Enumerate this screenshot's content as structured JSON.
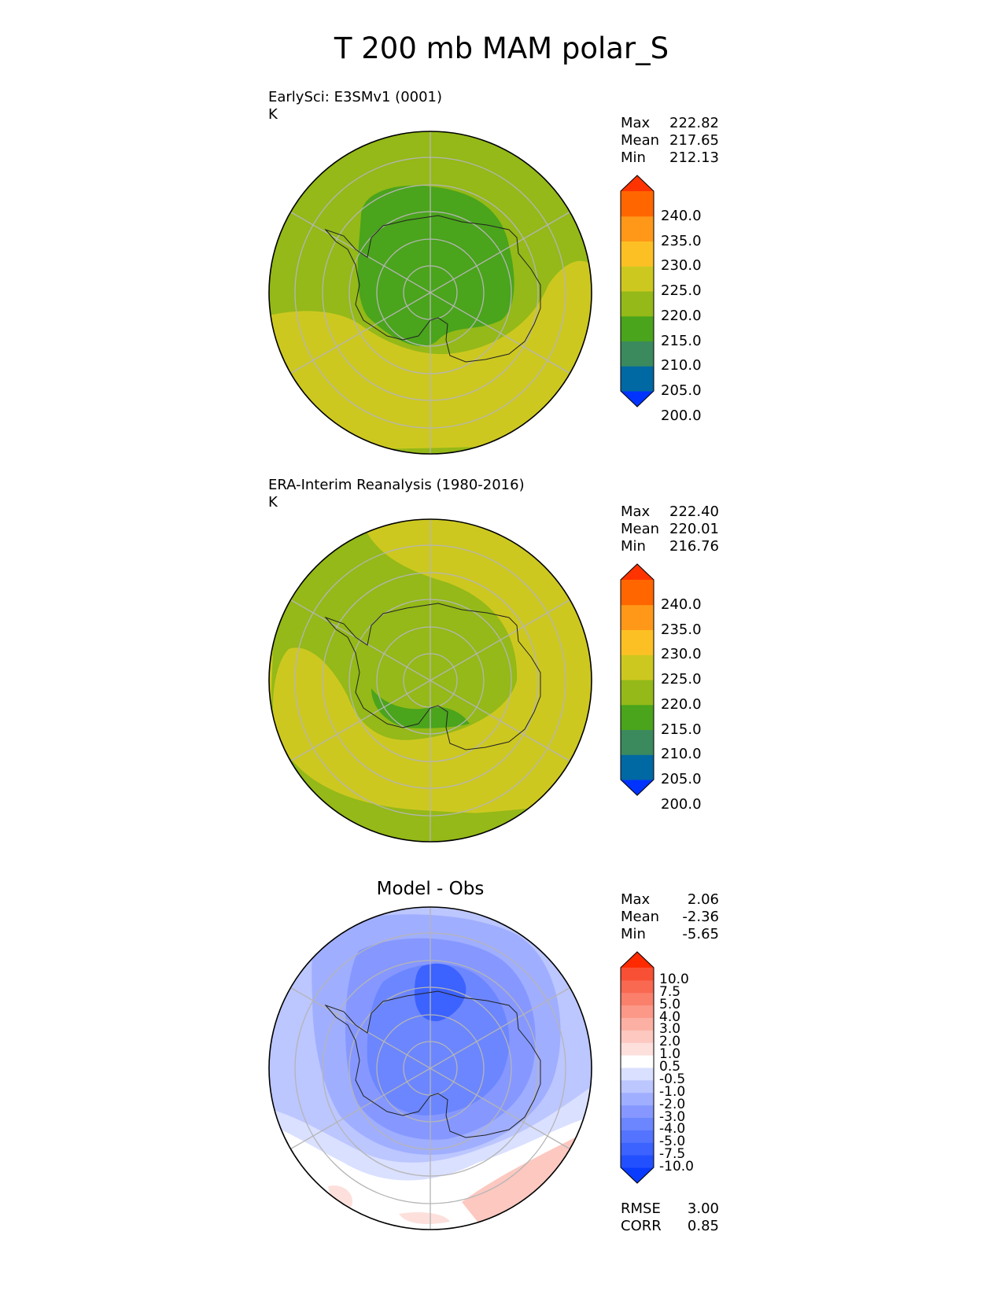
{
  "title": "T 200 mb MAM polar_S",
  "panels": [
    {
      "id": "test",
      "title_line1": "EarlySci: E3SMv1 (0001)",
      "title_line2": "K",
      "stats": [
        {
          "label": "Max",
          "value": "222.82"
        },
        {
          "label": "Mean",
          "value": "217.65"
        },
        {
          "label": "Min",
          "value": "212.13"
        }
      ],
      "colorbar": {
        "ticks": [
          "240.0",
          "235.0",
          "230.0",
          "225.0",
          "220.0",
          "215.0",
          "210.0",
          "205.0",
          "200.0"
        ],
        "colors": [
          "#0033ff",
          "#0068a2",
          "#3a8a5e",
          "#4aa41c",
          "#94b918",
          "#cdc820",
          "#fdc024",
          "#ff9818",
          "#ff6600",
          "#ff3300"
        ]
      }
    },
    {
      "id": "reference",
      "title_line1": "ERA-Interim Reanalysis (1980-2016)",
      "title_line2": "K",
      "stats": [
        {
          "label": "Max",
          "value": "222.40"
        },
        {
          "label": "Mean",
          "value": "220.01"
        },
        {
          "label": "Min",
          "value": "216.76"
        }
      ],
      "colorbar": {
        "ticks": [
          "240.0",
          "235.0",
          "230.0",
          "225.0",
          "220.0",
          "215.0",
          "210.0",
          "205.0",
          "200.0"
        ],
        "colors": [
          "#0033ff",
          "#0068a2",
          "#3a8a5e",
          "#4aa41c",
          "#94b918",
          "#cdc820",
          "#fdc024",
          "#ff9818",
          "#ff6600",
          "#ff3300"
        ]
      }
    },
    {
      "id": "diff",
      "title_center": "Model - Obs",
      "stats": [
        {
          "label": "Max",
          "value": "2.06"
        },
        {
          "label": "Mean",
          "value": "-2.36"
        },
        {
          "label": "Min",
          "value": "-5.65"
        }
      ],
      "colorbar": {
        "ticks": [
          "10.0",
          "7.5",
          "5.0",
          "4.0",
          "3.0",
          "2.0",
          "1.0",
          "0.5",
          "-0.5",
          "-1.0",
          "-2.0",
          "-3.0",
          "-4.0",
          "-5.0",
          "-7.5",
          "-10.0"
        ],
        "colors": [
          "#0a3cff",
          "#2350ff",
          "#3c62ff",
          "#5474ff",
          "#6c86ff",
          "#8698ff",
          "#a0aeff",
          "#bcc6ff",
          "#dae0ff",
          "#ffffff",
          "#fde0dc",
          "#fcc8c0",
          "#fcb0a4",
          "#fb9888",
          "#fa806c",
          "#f96850",
          "#f85034",
          "#ff2a00"
        ]
      },
      "metrics": [
        {
          "label": "RMSE",
          "value": "3.00"
        },
        {
          "label": "CORR",
          "value": "0.85"
        }
      ]
    }
  ]
}
